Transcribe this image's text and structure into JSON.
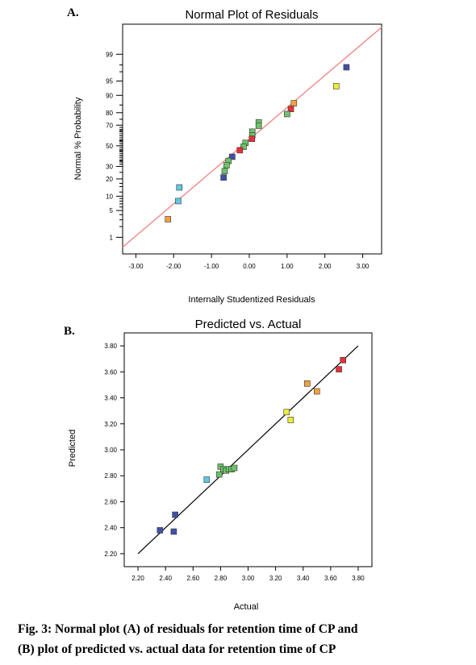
{
  "figure": {
    "caption_line1": "Fig. 3: Normal plot (A) of residuals for retention time of CP and",
    "caption_line2": "(B) plot of predicted vs. actual data for retention time of CP"
  },
  "chart_data": [
    {
      "panel_label": "A.",
      "type": "scatter",
      "title": "Normal Plot of Residuals",
      "xlabel": "Internally Studentized Residuals",
      "ylabel": "Normal % Probability",
      "xlim": [
        -3.35,
        3.5
      ],
      "x_ticks": [
        -3,
        -2,
        -1,
        0,
        1,
        2,
        3
      ],
      "x_tick_labels": [
        "-3.00",
        "-2.00",
        "-1.00",
        "0.00",
        "1.00",
        "2.00",
        "3.00"
      ],
      "y_scale": "normal-probability",
      "ylim_percent": [
        0.3,
        99.9
      ],
      "y_ticks": [
        1,
        5,
        10,
        20,
        30,
        50,
        70,
        80,
        90,
        95,
        99
      ],
      "y_tick_labels": [
        "1",
        "5",
        "10",
        "20",
        "30",
        "50",
        "70",
        "80",
        "90",
        "95",
        "99"
      ],
      "reference_line": {
        "color": "#f08080",
        "x": [
          -3.35,
          3.5
        ],
        "y": [
          0.5,
          99.87
        ]
      },
      "points": [
        {
          "x": 2.57,
          "y": 97.7,
          "color": "#3f51a5"
        },
        {
          "x": 2.3,
          "y": 93.5,
          "color": "#ecec3a"
        },
        {
          "x": 1.18,
          "y": 86.0,
          "color": "#f4a040"
        },
        {
          "x": 1.1,
          "y": 82.5,
          "color": "#e8303a"
        },
        {
          "x": 1.0,
          "y": 79.0,
          "color": "#6ec26a"
        },
        {
          "x": 0.25,
          "y": 72.5,
          "color": "#6ec26a"
        },
        {
          "x": 0.25,
          "y": 69.5,
          "color": "#6ec26a"
        },
        {
          "x": 0.08,
          "y": 64.0,
          "color": "#6ec26a"
        },
        {
          "x": 0.08,
          "y": 60.5,
          "color": "#6ec26a"
        },
        {
          "x": 0.07,
          "y": 57.0,
          "color": "#e8303a"
        },
        {
          "x": -0.1,
          "y": 53.0,
          "color": "#6ec26a"
        },
        {
          "x": -0.15,
          "y": 49.0,
          "color": "#6ec26a"
        },
        {
          "x": -0.25,
          "y": 45.5,
          "color": "#e8303a"
        },
        {
          "x": -0.45,
          "y": 39.0,
          "color": "#3f51a5"
        },
        {
          "x": -0.55,
          "y": 35.0,
          "color": "#6ec26a"
        },
        {
          "x": -0.6,
          "y": 31.0,
          "color": "#6ec26a"
        },
        {
          "x": -0.65,
          "y": 26.0,
          "color": "#6ec26a"
        },
        {
          "x": -0.68,
          "y": 21.0,
          "color": "#3f51a5"
        },
        {
          "x": -1.85,
          "y": 14.5,
          "color": "#5ec9e6"
        },
        {
          "x": -1.88,
          "y": 8.0,
          "color": "#5ec9e6"
        },
        {
          "x": -2.15,
          "y": 3.1,
          "color": "#f4a040"
        }
      ]
    },
    {
      "panel_label": "B.",
      "type": "scatter",
      "title": "Predicted vs. Actual",
      "xlabel": "Actual",
      "ylabel": "Predicted",
      "xlim": [
        2.1,
        3.9
      ],
      "ylim": [
        2.1,
        3.9
      ],
      "x_ticks": [
        2.2,
        2.4,
        2.6,
        2.8,
        3.0,
        3.2,
        3.4,
        3.6,
        3.8
      ],
      "x_tick_labels": [
        "2.20",
        "2.40",
        "2.60",
        "2.80",
        "3.00",
        "3.20",
        "3.40",
        "3.60",
        "3.80"
      ],
      "y_ticks": [
        2.2,
        2.4,
        2.6,
        2.8,
        3.0,
        3.2,
        3.4,
        3.6,
        3.8
      ],
      "y_tick_labels": [
        "2.20",
        "2.40",
        "2.60",
        "2.80",
        "3.00",
        "3.20",
        "3.40",
        "3.60",
        "3.80"
      ],
      "reference_line": {
        "color": "#000000",
        "x": [
          2.2,
          3.8
        ],
        "y": [
          2.2,
          3.8
        ]
      },
      "points": [
        {
          "x": 2.36,
          "y": 2.38,
          "color": "#3f51a5"
        },
        {
          "x": 2.46,
          "y": 2.37,
          "color": "#3f51a5"
        },
        {
          "x": 2.47,
          "y": 2.5,
          "color": "#3f51a5"
        },
        {
          "x": 2.7,
          "y": 2.77,
          "color": "#5ec9e6"
        },
        {
          "x": 2.79,
          "y": 2.81,
          "color": "#6ec26a"
        },
        {
          "x": 2.8,
          "y": 2.87,
          "color": "#6ec26a"
        },
        {
          "x": 2.82,
          "y": 2.85,
          "color": "#6ec26a"
        },
        {
          "x": 2.84,
          "y": 2.84,
          "color": "#6ec26a"
        },
        {
          "x": 2.86,
          "y": 2.85,
          "color": "#6ec26a"
        },
        {
          "x": 2.88,
          "y": 2.85,
          "color": "#6ec26a"
        },
        {
          "x": 2.9,
          "y": 2.86,
          "color": "#6ec26a"
        },
        {
          "x": 3.28,
          "y": 3.29,
          "color": "#ecec3a"
        },
        {
          "x": 3.31,
          "y": 3.23,
          "color": "#ecec3a"
        },
        {
          "x": 3.43,
          "y": 3.51,
          "color": "#f4a040"
        },
        {
          "x": 3.5,
          "y": 3.45,
          "color": "#f4a040"
        },
        {
          "x": 3.66,
          "y": 3.62,
          "color": "#e8303a"
        },
        {
          "x": 3.69,
          "y": 3.69,
          "color": "#e8303a"
        }
      ]
    }
  ]
}
